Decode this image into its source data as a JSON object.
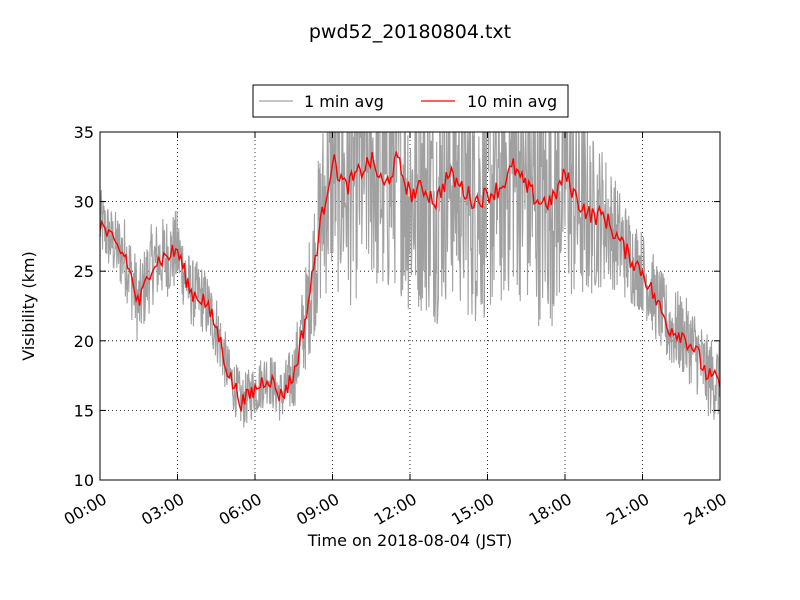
{
  "chart_data": {
    "type": "line",
    "title": "pwd52_20180804.txt",
    "xlabel": "Time on 2018-08-04 (JST)",
    "ylabel": "Visibility (km)",
    "xlim": [
      "00:00",
      "24:00"
    ],
    "ylim": [
      10,
      35
    ],
    "x_ticks": [
      "00:00",
      "03:00",
      "06:00",
      "09:00",
      "12:00",
      "15:00",
      "18:00",
      "21:00",
      "24:00"
    ],
    "y_ticks": [
      "10",
      "15",
      "20",
      "25",
      "30",
      "35"
    ],
    "grid": true,
    "legend_position": "top-center",
    "series": [
      {
        "name": "1 min avg",
        "color": "#a0a0a0",
        "x": [
          "00:00",
          "00:30",
          "01:00",
          "01:30",
          "02:00",
          "02:30",
          "03:00",
          "03:30",
          "04:00",
          "04:30",
          "05:00",
          "05:30",
          "06:00",
          "06:30",
          "07:00",
          "07:30",
          "08:00",
          "08:30",
          "09:00",
          "09:30",
          "10:00",
          "10:30",
          "11:00",
          "11:30",
          "12:00",
          "12:30",
          "13:00",
          "13:30",
          "14:00",
          "14:30",
          "15:00",
          "15:30",
          "16:00",
          "16:30",
          "17:00",
          "17:30",
          "18:00",
          "18:30",
          "19:00",
          "19:30",
          "20:00",
          "20:30",
          "21:00",
          "21:30",
          "22:00",
          "22:30",
          "23:00",
          "23:30",
          "24:00"
        ],
        "values": [
          28.5,
          27,
          26,
          22.5,
          25.5,
          26,
          26.5,
          23.5,
          23,
          21,
          17.5,
          15.5,
          16.5,
          17.5,
          16,
          17.5,
          22,
          28,
          33,
          31,
          32,
          33,
          31,
          33,
          30.5,
          31,
          30,
          32,
          31,
          30,
          30.5,
          31,
          32.5,
          31,
          30,
          30,
          32,
          30,
          29,
          29,
          27.5,
          26,
          25,
          23,
          21,
          20.5,
          19.5,
          17.5,
          17
        ],
        "amplitude": [
          2.5,
          2.5,
          3,
          3,
          3,
          3,
          3,
          2.5,
          2.5,
          2.5,
          2,
          2,
          2,
          2,
          2,
          2.5,
          4,
          6,
          9,
          9,
          9,
          9,
          9,
          9,
          9,
          9,
          9,
          9,
          9,
          9,
          9,
          9,
          9,
          9,
          9,
          9,
          9,
          8,
          6,
          5,
          4,
          3.5,
          3,
          3,
          3,
          3,
          3,
          3,
          3
        ]
      },
      {
        "name": "10 min avg",
        "color": "#ff0000",
        "x": [
          "00:00",
          "00:30",
          "01:00",
          "01:30",
          "02:00",
          "02:30",
          "03:00",
          "03:30",
          "04:00",
          "04:30",
          "05:00",
          "05:30",
          "06:00",
          "06:30",
          "07:00",
          "07:30",
          "08:00",
          "08:30",
          "09:00",
          "09:30",
          "10:00",
          "10:30",
          "11:00",
          "11:30",
          "12:00",
          "12:30",
          "13:00",
          "13:30",
          "14:00",
          "14:30",
          "15:00",
          "15:30",
          "16:00",
          "16:30",
          "17:00",
          "17:30",
          "18:00",
          "18:30",
          "19:00",
          "19:30",
          "20:00",
          "20:30",
          "21:00",
          "21:30",
          "22:00",
          "22:30",
          "23:00",
          "23:30",
          "24:00"
        ],
        "values": [
          28.5,
          27,
          26,
          22.5,
          25.5,
          26,
          26.5,
          23.5,
          23,
          21,
          17.5,
          15.5,
          16.5,
          17.5,
          16,
          17.5,
          22,
          28,
          33,
          31,
          32,
          33,
          31,
          33,
          30.5,
          31,
          30,
          32,
          31,
          30,
          30.5,
          31,
          32.5,
          31,
          30,
          30,
          32,
          30,
          29,
          29,
          27.5,
          26,
          25,
          23,
          21,
          20.5,
          19.5,
          17.5,
          17
        ]
      }
    ]
  }
}
